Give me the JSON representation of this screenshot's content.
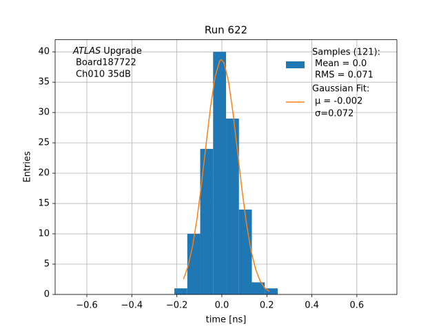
{
  "chart_data": {
    "type": "histogram",
    "title": "Run 622",
    "xlabel": "time [ns]",
    "ylabel": "Entries",
    "annotation": [
      "ATLAS",
      "Upgrade",
      "Board187722",
      "Ch010 35dB"
    ],
    "bins": [
      -0.211,
      -0.1536,
      -0.0962,
      -0.0388,
      0.0186,
      0.076,
      0.1334,
      0.1908,
      0.2482
    ],
    "values": [
      1,
      10,
      24,
      40,
      29,
      14,
      2,
      1
    ],
    "color": "#1f77b4",
    "name": [
      "Samples (121):",
      "Mean = 0.0",
      "RMS = 0.071"
    ],
    "fit": {
      "type": "line",
      "name": [
        "Gaussian Fit:",
        "μ = -0.002",
        "σ=0.072"
      ],
      "color": "#ff7f0e",
      "x": [
        -0.17,
        -0.15,
        -0.13,
        -0.11,
        -0.09,
        -0.07,
        -0.05,
        -0.03,
        -0.01,
        -0.002,
        0.01,
        0.03,
        0.05,
        0.07,
        0.09,
        0.11,
        0.13,
        0.15,
        0.17,
        0.19,
        0.21
      ],
      "values": [
        2.54,
        4.68,
        7.97,
        12.57,
        18.34,
        24.78,
        30.99,
        35.88,
        38.46,
        38.7,
        38.17,
        35.06,
        29.81,
        23.47,
        17.11,
        11.54,
        7.21,
        4.17,
        2.23,
        1.11,
        0.51
      ]
    },
    "xlim": [
      -0.741,
      0.778
    ],
    "ylim": [
      0,
      42
    ],
    "xticks": [
      {
        "value": -0.6,
        "label": "−0.6"
      },
      {
        "value": -0.4,
        "label": "−0.4"
      },
      {
        "value": -0.2,
        "label": "−0.2"
      },
      {
        "value": 0,
        "label": "0.0"
      },
      0.2,
      0.4,
      0.6
    ],
    "yticks": [
      0,
      5,
      10,
      15,
      20,
      25,
      30,
      35,
      40
    ],
    "grid": true
  }
}
